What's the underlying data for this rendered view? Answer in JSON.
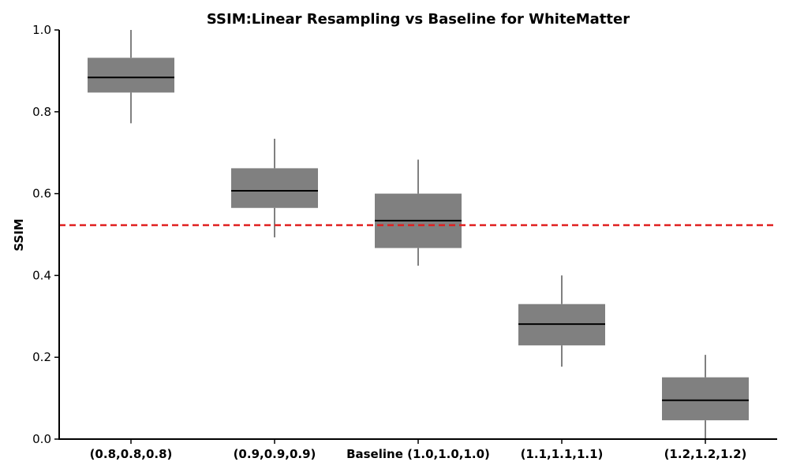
{
  "chart_data": {
    "type": "box",
    "title": "SSIM:Linear Resampling vs Baseline for WhiteMatter",
    "xlabel": "",
    "ylabel": "SSIM",
    "ylim": [
      0.0,
      1.0
    ],
    "yticks": [
      "0.0",
      "0.2",
      "0.4",
      "0.6",
      "0.8",
      "1.0"
    ],
    "categories": [
      "(0.8,0.8,0.8)",
      "(0.9,0.9,0.9)",
      "Baseline (1.0,1.0,1.0)",
      "(1.1,1.1,1.1)",
      "(1.2,1.2,1.2)"
    ],
    "boxes": [
      {
        "whisker_low": 0.772,
        "q1": 0.847,
        "median": 0.884,
        "q3": 0.932,
        "whisker_high": 1.0
      },
      {
        "whisker_low": 0.493,
        "q1": 0.565,
        "median": 0.607,
        "q3": 0.662,
        "whisker_high": 0.734
      },
      {
        "whisker_low": 0.424,
        "q1": 0.467,
        "median": 0.534,
        "q3": 0.6,
        "whisker_high": 0.683
      },
      {
        "whisker_low": 0.177,
        "q1": 0.229,
        "median": 0.281,
        "q3": 0.33,
        "whisker_high": 0.4
      },
      {
        "whisker_low": 0.0,
        "q1": 0.046,
        "median": 0.095,
        "q3": 0.151,
        "whisker_high": 0.206
      }
    ],
    "reference_line": {
      "value": 0.523,
      "style": "dashed"
    },
    "box_color": "#808080",
    "median_color": "#000000",
    "reference_color": "#e02020",
    "grid": false,
    "legend": "none"
  }
}
